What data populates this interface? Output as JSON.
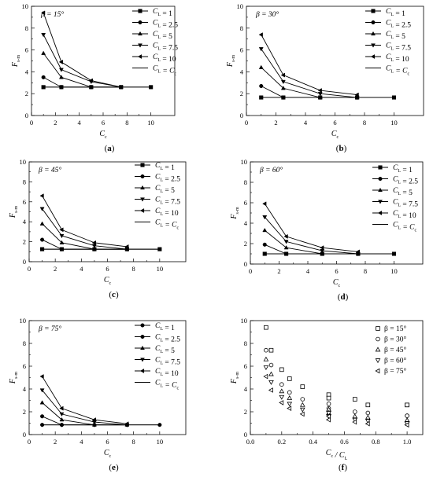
{
  "chart_data": [
    {
      "panel": "(a)",
      "type": "line",
      "annotation": "β = 15°",
      "xlabel": "C_c",
      "ylabel": "F_s-m",
      "xlim": [
        0,
        12
      ],
      "ylim": [
        0,
        10
      ],
      "xticks": [
        0,
        2,
        4,
        6,
        8,
        10
      ],
      "yticks": [
        0,
        2,
        4,
        6,
        8,
        10
      ],
      "legend_position": "top-right",
      "series": [
        {
          "name": "C_L = 1",
          "marker": "square",
          "x": [
            1,
            2.5,
            5,
            7.5,
            10
          ],
          "y": [
            2.6,
            2.6,
            2.6,
            2.6,
            2.6
          ]
        },
        {
          "name": "C_L = 2.5",
          "marker": "circle",
          "x": [
            1,
            2.5,
            5,
            7.5
          ],
          "y": [
            3.5,
            2.6,
            2.6,
            2.6
          ]
        },
        {
          "name": "C_L = 5",
          "marker": "triangle-up",
          "x": [
            1,
            2.5,
            5,
            7.5
          ],
          "y": [
            5.7,
            3.5,
            2.6,
            2.6
          ]
        },
        {
          "name": "C_L = 7.5",
          "marker": "triangle-down",
          "x": [
            1,
            2.5,
            5,
            7.5
          ],
          "y": [
            7.4,
            4.2,
            3.1,
            2.6
          ]
        },
        {
          "name": "C_L = 10",
          "marker": "triangle-left",
          "x": [
            1,
            2.5,
            5,
            7.5
          ],
          "y": [
            9.4,
            4.9,
            3.2,
            2.6
          ]
        },
        {
          "name": "C_L = C_c",
          "marker": "none",
          "x": [
            1,
            10
          ],
          "y": [
            2.6,
            2.6
          ]
        }
      ]
    },
    {
      "panel": "(b)",
      "type": "line",
      "annotation": "β = 30°",
      "xlabel": "C_c",
      "ylabel": "F_s-m",
      "xlim": [
        0,
        12
      ],
      "ylim": [
        0,
        10
      ],
      "xticks": [
        0,
        2,
        4,
        6,
        8,
        10
      ],
      "yticks": [
        0,
        2,
        4,
        6,
        8,
        10
      ],
      "legend_position": "top-right",
      "series": [
        {
          "name": "C_L = 1",
          "marker": "square",
          "x": [
            1,
            2.5,
            5,
            7.5,
            10
          ],
          "y": [
            1.65,
            1.65,
            1.65,
            1.65,
            1.65
          ]
        },
        {
          "name": "C_L = 2.5",
          "marker": "circle",
          "x": [
            1,
            2.5,
            5,
            7.5
          ],
          "y": [
            2.7,
            1.65,
            1.65,
            1.65
          ]
        },
        {
          "name": "C_L = 5",
          "marker": "triangle-up",
          "x": [
            1,
            2.5,
            5,
            7.5
          ],
          "y": [
            4.4,
            2.5,
            1.65,
            1.65
          ]
        },
        {
          "name": "C_L = 7.5",
          "marker": "triangle-down",
          "x": [
            1,
            2.5,
            5,
            7.5
          ],
          "y": [
            6.1,
            3.1,
            2.0,
            1.65
          ]
        },
        {
          "name": "C_L = 10",
          "marker": "triangle-left",
          "x": [
            1,
            2.5,
            5,
            7.5
          ],
          "y": [
            7.4,
            3.7,
            2.3,
            1.9
          ]
        },
        {
          "name": "C_L = C_c",
          "marker": "none",
          "x": [
            1,
            10
          ],
          "y": [
            1.65,
            1.65
          ]
        }
      ]
    },
    {
      "panel": "(c)",
      "type": "line",
      "annotation": "β = 45°",
      "xlabel": "C_c",
      "ylabel": "F_s-m",
      "xlim": [
        0,
        12
      ],
      "ylim": [
        0,
        10
      ],
      "xticks": [
        0,
        2,
        4,
        6,
        8,
        10
      ],
      "yticks": [
        0,
        2,
        4,
        6,
        8,
        10
      ],
      "legend_position": "top-right",
      "series": [
        {
          "name": "C_L = 1",
          "marker": "square",
          "x": [
            1,
            2.5,
            5,
            7.5,
            10
          ],
          "y": [
            1.25,
            1.25,
            1.25,
            1.25,
            1.25
          ]
        },
        {
          "name": "C_L = 2.5",
          "marker": "circle",
          "x": [
            1,
            2.5,
            5,
            7.5
          ],
          "y": [
            2.2,
            1.25,
            1.25,
            1.25
          ]
        },
        {
          "name": "C_L = 5",
          "marker": "triangle-up",
          "x": [
            1,
            2.5,
            5,
            7.5
          ],
          "y": [
            3.8,
            1.9,
            1.25,
            1.25
          ]
        },
        {
          "name": "C_L = 7.5",
          "marker": "triangle-down",
          "x": [
            1,
            2.5,
            5,
            7.5
          ],
          "y": [
            5.3,
            2.6,
            1.6,
            1.25
          ]
        },
        {
          "name": "C_L = 10",
          "marker": "triangle-left",
          "x": [
            1,
            2.5,
            5,
            7.5
          ],
          "y": [
            6.6,
            3.2,
            1.9,
            1.5
          ]
        },
        {
          "name": "C_L = C_c",
          "marker": "none",
          "x": [
            1,
            10
          ],
          "y": [
            1.25,
            1.25
          ]
        }
      ]
    },
    {
      "panel": "(d)",
      "type": "line",
      "annotation": "β = 60°",
      "xlabel": "C_c",
      "ylabel": "F_s-m",
      "xlim": [
        0,
        12
      ],
      "ylim": [
        0,
        10
      ],
      "xticks": [
        0,
        2,
        4,
        6,
        8,
        10
      ],
      "yticks": [
        0,
        2,
        4,
        6,
        8,
        10
      ],
      "legend_position": "top-right",
      "series": [
        {
          "name": "C_L = 1",
          "marker": "square",
          "x": [
            1,
            2.5,
            5,
            7.5,
            10
          ],
          "y": [
            1.0,
            1.0,
            1.0,
            1.0,
            1.0
          ]
        },
        {
          "name": "C_L = 2.5",
          "marker": "circle",
          "x": [
            1,
            2.5,
            5,
            7.5
          ],
          "y": [
            1.9,
            1.0,
            1.0,
            1.0
          ]
        },
        {
          "name": "C_L = 5",
          "marker": "triangle-up",
          "x": [
            1,
            2.5,
            5,
            7.5
          ],
          "y": [
            3.3,
            1.6,
            1.0,
            1.0
          ]
        },
        {
          "name": "C_L = 7.5",
          "marker": "triangle-down",
          "x": [
            1,
            2.5,
            5,
            7.5
          ],
          "y": [
            4.6,
            2.2,
            1.3,
            1.0
          ]
        },
        {
          "name": "C_L = 10",
          "marker": "triangle-left",
          "x": [
            1,
            2.5,
            5,
            7.5
          ],
          "y": [
            5.9,
            2.7,
            1.6,
            1.2
          ]
        },
        {
          "name": "C_L = C_c",
          "marker": "none",
          "x": [
            1,
            10
          ],
          "y": [
            1.0,
            1.0
          ]
        }
      ]
    },
    {
      "panel": "(e)",
      "type": "line",
      "annotation": "β = 75°",
      "xlabel": "C_c",
      "ylabel": "F_s-m",
      "xlim": [
        0,
        12
      ],
      "ylim": [
        0,
        10
      ],
      "xticks": [
        0,
        2,
        4,
        6,
        8,
        10
      ],
      "yticks": [
        0,
        2,
        4,
        6,
        8,
        10
      ],
      "legend_position": "top-right",
      "series": [
        {
          "name": "C_L = 1",
          "marker": "circle",
          "x": [
            1,
            2.5,
            5,
            7.5,
            10
          ],
          "y": [
            0.85,
            0.85,
            0.85,
            0.85,
            0.85
          ]
        },
        {
          "name": "C_L = 2.5",
          "marker": "circle",
          "x": [
            1,
            2.5,
            5,
            7.5
          ],
          "y": [
            1.6,
            0.85,
            0.85,
            0.85
          ]
        },
        {
          "name": "C_L = 5",
          "marker": "triangle-up",
          "x": [
            1,
            2.5,
            5,
            7.5
          ],
          "y": [
            2.8,
            1.3,
            0.85,
            0.85
          ]
        },
        {
          "name": "C_L = 7.5",
          "marker": "triangle-down",
          "x": [
            1,
            2.5,
            5,
            7.5
          ],
          "y": [
            3.9,
            1.8,
            1.1,
            0.85
          ]
        },
        {
          "name": "C_L = 10",
          "marker": "triangle-left",
          "x": [
            1,
            2.5,
            5,
            7.5
          ],
          "y": [
            5.1,
            2.3,
            1.3,
            0.95
          ]
        },
        {
          "name": "C_L = C_c",
          "marker": "none",
          "x": [
            1,
            10
          ],
          "y": [
            0.85,
            0.85
          ]
        }
      ]
    },
    {
      "panel": "(f)",
      "type": "scatter",
      "xlabel": "C_c / C_L",
      "ylabel": "F_s-m",
      "xlim": [
        0,
        1.1
      ],
      "ylim": [
        0,
        10
      ],
      "xticks": [
        0,
        0.2,
        0.4,
        0.6,
        0.8,
        1.0
      ],
      "yticks": [
        0,
        2,
        4,
        6,
        8,
        10
      ],
      "legend_position": "top-right",
      "series": [
        {
          "name": "β = 15°",
          "marker": "open-square",
          "x": [
            0.1,
            0.133,
            0.2,
            0.25,
            0.333,
            0.5,
            0.5,
            0.667,
            0.75,
            1.0,
            1.0
          ],
          "y": [
            9.4,
            7.4,
            5.7,
            4.9,
            4.2,
            3.5,
            3.2,
            3.1,
            2.6,
            2.6,
            2.6
          ]
        },
        {
          "name": "β = 30°",
          "marker": "open-circle",
          "x": [
            0.1,
            0.133,
            0.2,
            0.25,
            0.333,
            0.5,
            0.5,
            0.667,
            0.75,
            1.0,
            1.0
          ],
          "y": [
            7.4,
            6.1,
            4.4,
            3.7,
            3.1,
            2.7,
            2.3,
            2.0,
            1.9,
            1.65,
            1.65
          ]
        },
        {
          "name": "β = 45°",
          "marker": "open-triangle-up",
          "x": [
            0.1,
            0.133,
            0.2,
            0.25,
            0.333,
            0.5,
            0.5,
            0.667,
            0.75,
            1.0,
            1.0
          ],
          "y": [
            6.6,
            5.3,
            3.8,
            3.2,
            2.6,
            2.2,
            1.9,
            1.6,
            1.5,
            1.25,
            1.25
          ]
        },
        {
          "name": "β = 60°",
          "marker": "open-triangle-down",
          "x": [
            0.1,
            0.133,
            0.2,
            0.25,
            0.333,
            0.5,
            0.5,
            0.667,
            0.75,
            1.0,
            1.0
          ],
          "y": [
            5.9,
            4.6,
            3.3,
            2.7,
            2.2,
            1.9,
            1.6,
            1.3,
            1.2,
            1.0,
            1.0
          ]
        },
        {
          "name": "β = 75°",
          "marker": "open-triangle-left",
          "x": [
            0.1,
            0.133,
            0.2,
            0.25,
            0.333,
            0.5,
            0.5,
            0.667,
            0.75,
            1.0,
            1.0
          ],
          "y": [
            5.1,
            3.9,
            2.8,
            2.3,
            1.8,
            1.6,
            1.3,
            1.1,
            0.95,
            0.85,
            0.85
          ]
        }
      ]
    }
  ]
}
